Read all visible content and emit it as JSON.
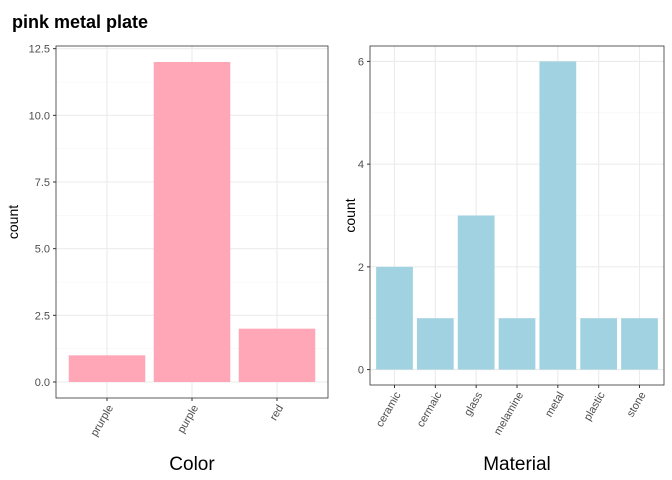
{
  "title": "pink metal plate",
  "chart_data": [
    {
      "type": "bar",
      "categories": [
        "prurple",
        "purple",
        "red"
      ],
      "values": [
        1,
        12,
        2
      ],
      "xlabel": "Color",
      "ylabel": "count",
      "ylim": [
        0,
        12.6
      ],
      "yticks": [
        0,
        2.5,
        5,
        7.5,
        10,
        12.5
      ],
      "ytick_labels": [
        "0.0",
        "2.5",
        "5.0",
        "7.5",
        "10.0",
        "12.5"
      ],
      "bar_color": "#FFA6B7",
      "grid": true
    },
    {
      "type": "bar",
      "categories": [
        "ceramic",
        "cermaic",
        "glass",
        "melamine",
        "metal",
        "plastic",
        "stone"
      ],
      "values": [
        2,
        1,
        3,
        1,
        6,
        1,
        1
      ],
      "xlabel": "Material",
      "ylabel": "count",
      "ylim": [
        0,
        6.3
      ],
      "yticks": [
        0,
        2,
        4,
        6
      ],
      "ytick_labels": [
        "0",
        "2",
        "4",
        "6"
      ],
      "bar_color": "#A1D2E1",
      "grid": true
    }
  ]
}
